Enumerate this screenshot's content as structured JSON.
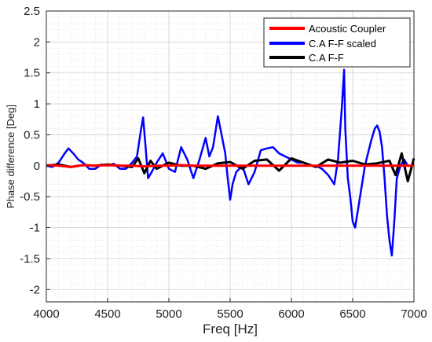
{
  "chart_data": {
    "type": "line",
    "xlabel": "Freq [Hz]",
    "ylabel": "Phase difference [Deg]",
    "xlim": [
      4000,
      7000
    ],
    "ylim": [
      -2.2,
      2.5
    ],
    "xticks": [
      4000,
      4500,
      5000,
      5500,
      6000,
      6500,
      7000
    ],
    "yticks": [
      -2,
      -1.5,
      -1,
      -0.5,
      0,
      0.5,
      1,
      1.5,
      2,
      2.5
    ],
    "xtick_labels": [
      "4000",
      "4500",
      "5000",
      "5500",
      "6000",
      "6500",
      "7000"
    ],
    "ytick_labels": [
      "-2",
      "-1.5",
      "-1",
      "-0.5",
      "0",
      "0.5",
      "1",
      "1.5",
      "2",
      "2.5"
    ],
    "grid": true,
    "minor_grid": true,
    "legend_position": "top-right",
    "series": [
      {
        "name": "Acoustic Coupler",
        "color": "#ff0000",
        "x": [
          4000,
          4100,
          4200,
          4300,
          4400,
          4500,
          4600,
          4700,
          4800,
          4900,
          5000,
          5100,
          5200,
          5300,
          5400,
          5500,
          5600,
          5700,
          5800,
          5900,
          6000,
          6100,
          6200,
          6300,
          6400,
          6500,
          6600,
          6700,
          6800,
          6900,
          7000
        ],
        "y": [
          0.01,
          0.0,
          -0.02,
          0.01,
          0.0,
          0.01,
          0.0,
          0.0,
          -0.01,
          0.0,
          0.0,
          0.01,
          0.0,
          0.0,
          0.0,
          0.0,
          0.0,
          0.0,
          0.0,
          0.0,
          0.0,
          0.0,
          0.0,
          0.0,
          0.0,
          0.0,
          0.0,
          0.0,
          0.0,
          0.0,
          0.0
        ]
      },
      {
        "name": "C.A F-F scaled",
        "color": "#0000ff",
        "x": [
          4000,
          4050,
          4100,
          4150,
          4180,
          4220,
          4260,
          4300,
          4350,
          4400,
          4450,
          4500,
          4550,
          4600,
          4650,
          4700,
          4740,
          4770,
          4790,
          4810,
          4830,
          4860,
          4900,
          4950,
          5000,
          5050,
          5100,
          5150,
          5200,
          5250,
          5300,
          5330,
          5360,
          5400,
          5430,
          5460,
          5480,
          5500,
          5520,
          5550,
          5600,
          5650,
          5700,
          5750,
          5800,
          5850,
          5900,
          5950,
          6000,
          6050,
          6100,
          6150,
          6200,
          6250,
          6300,
          6350,
          6380,
          6410,
          6430,
          6440,
          6460,
          6480,
          6500,
          6520,
          6560,
          6600,
          6650,
          6680,
          6700,
          6720,
          6740,
          6760,
          6780,
          6800,
          6820,
          6840,
          6860,
          6890,
          6920,
          6950,
          7000
        ],
        "y": [
          0.0,
          -0.02,
          0.05,
          0.2,
          0.28,
          0.2,
          0.1,
          0.05,
          -0.05,
          -0.05,
          0.02,
          0.0,
          0.03,
          -0.05,
          -0.05,
          0.05,
          0.15,
          0.55,
          0.78,
          0.3,
          -0.2,
          -0.1,
          0.05,
          0.2,
          -0.05,
          -0.1,
          0.3,
          0.1,
          -0.2,
          0.1,
          0.45,
          0.15,
          0.3,
          0.8,
          0.5,
          0.2,
          -0.2,
          -0.55,
          -0.3,
          -0.1,
          0.0,
          -0.3,
          -0.1,
          0.25,
          0.28,
          0.3,
          0.2,
          0.15,
          0.1,
          0.05,
          0.05,
          0.0,
          0.0,
          -0.05,
          -0.15,
          -0.3,
          0.1,
          0.9,
          1.55,
          0.6,
          -0.2,
          -0.5,
          -0.9,
          -1.0,
          -0.5,
          0.0,
          0.4,
          0.6,
          0.65,
          0.55,
          0.3,
          -0.2,
          -0.8,
          -1.2,
          -1.45,
          -0.9,
          -0.2,
          0.0,
          0.1,
          0.0,
          0.0
        ]
      },
      {
        "name": "C.A F-F",
        "color": "#000000",
        "x": [
          4000,
          4100,
          4200,
          4300,
          4400,
          4500,
          4600,
          4700,
          4750,
          4800,
          4850,
          4900,
          5000,
          5100,
          5200,
          5300,
          5400,
          5500,
          5600,
          5700,
          5800,
          5900,
          6000,
          6100,
          6200,
          6300,
          6400,
          6500,
          6600,
          6700,
          6800,
          6850,
          6900,
          6950,
          7000
        ],
        "y": [
          0.0,
          0.02,
          -0.02,
          0.01,
          0.0,
          0.02,
          0.0,
          -0.02,
          0.12,
          -0.12,
          0.08,
          -0.05,
          0.05,
          0.0,
          0.0,
          -0.05,
          0.04,
          0.06,
          -0.05,
          0.08,
          0.1,
          -0.08,
          0.12,
          0.05,
          -0.02,
          0.1,
          0.05,
          0.08,
          0.02,
          0.04,
          0.08,
          -0.15,
          0.2,
          -0.25,
          0.12
        ]
      }
    ]
  }
}
